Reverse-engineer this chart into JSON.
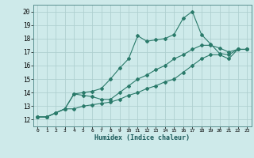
{
  "xlabel": "Humidex (Indice chaleur)",
  "xlim": [
    -0.5,
    23.5
  ],
  "ylim": [
    11.5,
    20.5
  ],
  "xticks": [
    0,
    1,
    2,
    3,
    4,
    5,
    6,
    7,
    8,
    9,
    10,
    11,
    12,
    13,
    14,
    15,
    16,
    17,
    18,
    19,
    20,
    21,
    22,
    23
  ],
  "yticks": [
    12,
    13,
    14,
    15,
    16,
    17,
    18,
    19,
    20
  ],
  "background_color": "#ceeaea",
  "grid_color": "#afd0d0",
  "line_color": "#2a7a6a",
  "series": [
    {
      "x": [
        0,
        1,
        2,
        3,
        4,
        5,
        6,
        7,
        8,
        9,
        10,
        11,
        12,
        13,
        14,
        15,
        16,
        17,
        18,
        19,
        20,
        21,
        22,
        23
      ],
      "y": [
        12.2,
        12.2,
        12.5,
        12.8,
        13.9,
        14.0,
        14.1,
        14.3,
        15.0,
        15.8,
        16.5,
        18.2,
        17.8,
        17.9,
        18.0,
        18.3,
        19.5,
        20.0,
        18.3,
        17.6,
        16.9,
        16.8,
        17.2,
        17.2
      ]
    },
    {
      "x": [
        0,
        1,
        2,
        3,
        4,
        5,
        6,
        7,
        8,
        9,
        10,
        11,
        12,
        13,
        14,
        15,
        16,
        17,
        18,
        19,
        20,
        21,
        22,
        23
      ],
      "y": [
        12.2,
        12.2,
        12.5,
        12.8,
        13.9,
        13.8,
        13.7,
        13.5,
        13.5,
        14.0,
        14.5,
        15.0,
        15.3,
        15.7,
        16.0,
        16.5,
        16.8,
        17.2,
        17.5,
        17.5,
        17.3,
        17.0,
        17.2,
        17.2
      ]
    },
    {
      "x": [
        0,
        1,
        2,
        3,
        4,
        5,
        6,
        7,
        8,
        9,
        10,
        11,
        12,
        13,
        14,
        15,
        16,
        17,
        18,
        19,
        20,
        21,
        22,
        23
      ],
      "y": [
        12.2,
        12.2,
        12.5,
        12.8,
        12.8,
        13.0,
        13.1,
        13.2,
        13.3,
        13.5,
        13.8,
        14.0,
        14.3,
        14.5,
        14.8,
        15.0,
        15.5,
        16.0,
        16.5,
        16.8,
        16.8,
        16.5,
        17.2,
        17.2
      ]
    }
  ]
}
